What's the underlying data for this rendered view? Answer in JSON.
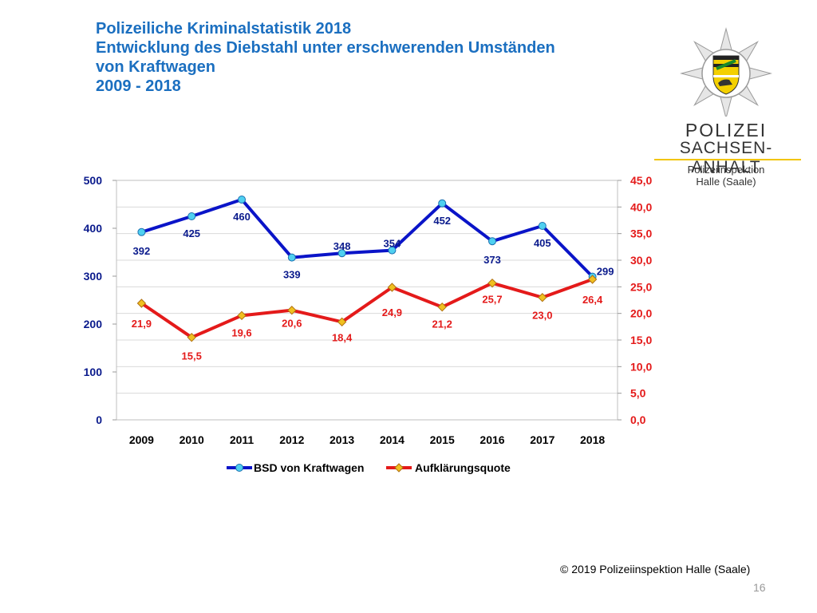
{
  "slide": {
    "title_lines": [
      "Polizeiliche Kriminalstatistik 2018",
      "Entwicklung des Diebstahl unter erschwerenden Umständen",
      "von Kraftwagen",
      "2009 - 2018"
    ],
    "copyright": "© 2019 Polizeiinspektion Halle (Saale)",
    "page_number": "16"
  },
  "logo": {
    "line1": "POLIZEI",
    "line2": "SACHSEN-ANHALT",
    "line3": "Polizeiinspektion",
    "line4": "Halle (Saale)"
  },
  "colors": {
    "title": "#1b6fc0",
    "series_blue": "#0a14c8",
    "series_blue_marker": "#4fd0f0",
    "series_red": "#e41a1a",
    "series_red_marker": "#f0c020",
    "axis_left_labels": "#0a1a8c",
    "axis_right_labels": "#e41a1a",
    "grid": "#d9d9d9"
  },
  "chart_data": {
    "type": "line",
    "categories": [
      "2009",
      "2010",
      "2011",
      "2012",
      "2013",
      "2014",
      "2015",
      "2016",
      "2017",
      "2018"
    ],
    "series": [
      {
        "name": "BSD von Kraftwagen",
        "axis": "left",
        "values": [
          392,
          425,
          460,
          339,
          348,
          354,
          452,
          373,
          405,
          299
        ],
        "labels": [
          "392",
          "425",
          "460",
          "339",
          "348",
          "354",
          "452",
          "373",
          "405",
          "299"
        ]
      },
      {
        "name": "Aufklärungsquote",
        "axis": "right",
        "values": [
          21.9,
          15.5,
          19.6,
          20.6,
          18.4,
          24.9,
          21.2,
          25.7,
          23.0,
          26.4
        ],
        "labels": [
          "21,9",
          "15,5",
          "19,6",
          "20,6",
          "18,4",
          "24,9",
          "21,2",
          "25,7",
          "23,0",
          "26,4"
        ]
      }
    ],
    "y_left": {
      "min": 0,
      "max": 500,
      "ticks": [
        0,
        100,
        200,
        300,
        400,
        500
      ],
      "tick_labels": [
        "0",
        "100",
        "200",
        "300",
        "400",
        "500"
      ]
    },
    "y_right": {
      "min": 0,
      "max": 45,
      "ticks": [
        0,
        5,
        10,
        15,
        20,
        25,
        30,
        35,
        40,
        45
      ],
      "tick_labels": [
        "0,0",
        "5,0",
        "10,0",
        "15,0",
        "20,0",
        "25,0",
        "30,0",
        "35,0",
        "40,0",
        "45,0"
      ]
    },
    "grid": true,
    "legend": "bottom"
  }
}
